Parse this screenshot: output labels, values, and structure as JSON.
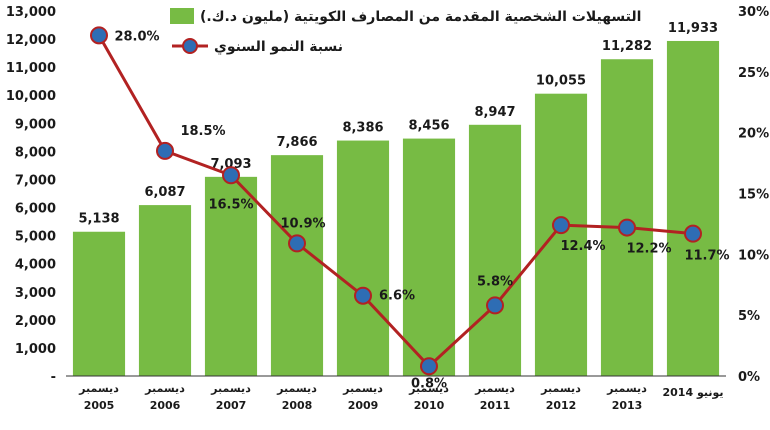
{
  "chart_data": {
    "type": "bar",
    "categories": [
      [
        "ديسمبر",
        "2005"
      ],
      [
        "ديسمبر",
        "2006"
      ],
      [
        "ديسمبر",
        "2007"
      ],
      [
        "ديسمبر",
        "2008"
      ],
      [
        "ديسمبر",
        "2009"
      ],
      [
        "ديسمبر",
        "2010"
      ],
      [
        "ديسمبر",
        "2011"
      ],
      [
        "ديسمبر",
        "2012"
      ],
      [
        "ديسمبر",
        "2013"
      ],
      [
        "يونيو 2014"
      ]
    ],
    "series": [
      {
        "name": "التسهيلات الشخصية المقدمة من المصارف الكويتية (مليون د.ك.)",
        "type": "bar",
        "axis": "left",
        "color": "#77bb44",
        "values": [
          5138,
          6087,
          7093,
          7866,
          8386,
          8456,
          8947,
          10055,
          11282,
          11933
        ],
        "labels": [
          "5,138",
          "6,087",
          "7,093",
          "7,866",
          "8,386",
          "8,456",
          "8,947",
          "10,055",
          "11,282",
          "11,933"
        ]
      },
      {
        "name": "نسبة النمو السنوي",
        "type": "line",
        "axis": "right",
        "color": "#b22222",
        "marker_color": "#2e6db4",
        "values": [
          28.0,
          18.5,
          16.5,
          10.9,
          6.6,
          0.8,
          5.8,
          12.4,
          12.2,
          11.7
        ],
        "labels": [
          "28.0%",
          "18.5%",
          "16.5%",
          "10.9%",
          "6.6%",
          "0.8%",
          "5.8%",
          "12.4%",
          "12.2%",
          "11.7%"
        ]
      }
    ],
    "y_left": {
      "range": [
        0,
        13000
      ],
      "ticks": [
        0,
        1000,
        2000,
        3000,
        4000,
        5000,
        6000,
        7000,
        8000,
        9000,
        10000,
        11000,
        12000,
        13000
      ],
      "tick_labels": [
        "-",
        "1,000",
        "2,000",
        "3,000",
        "4,000",
        "5,000",
        "6,000",
        "7,000",
        "8,000",
        "9,000",
        "10,000",
        "11,000",
        "12,000",
        "13,000"
      ]
    },
    "y_right": {
      "range": [
        0,
        30
      ],
      "ticks": [
        0,
        5,
        10,
        15,
        20,
        25,
        30
      ],
      "tick_labels": [
        "0%",
        "5%",
        "10%",
        "15%",
        "20%",
        "25%",
        "30%"
      ]
    },
    "grid": false,
    "legend_position": "top-center"
  }
}
